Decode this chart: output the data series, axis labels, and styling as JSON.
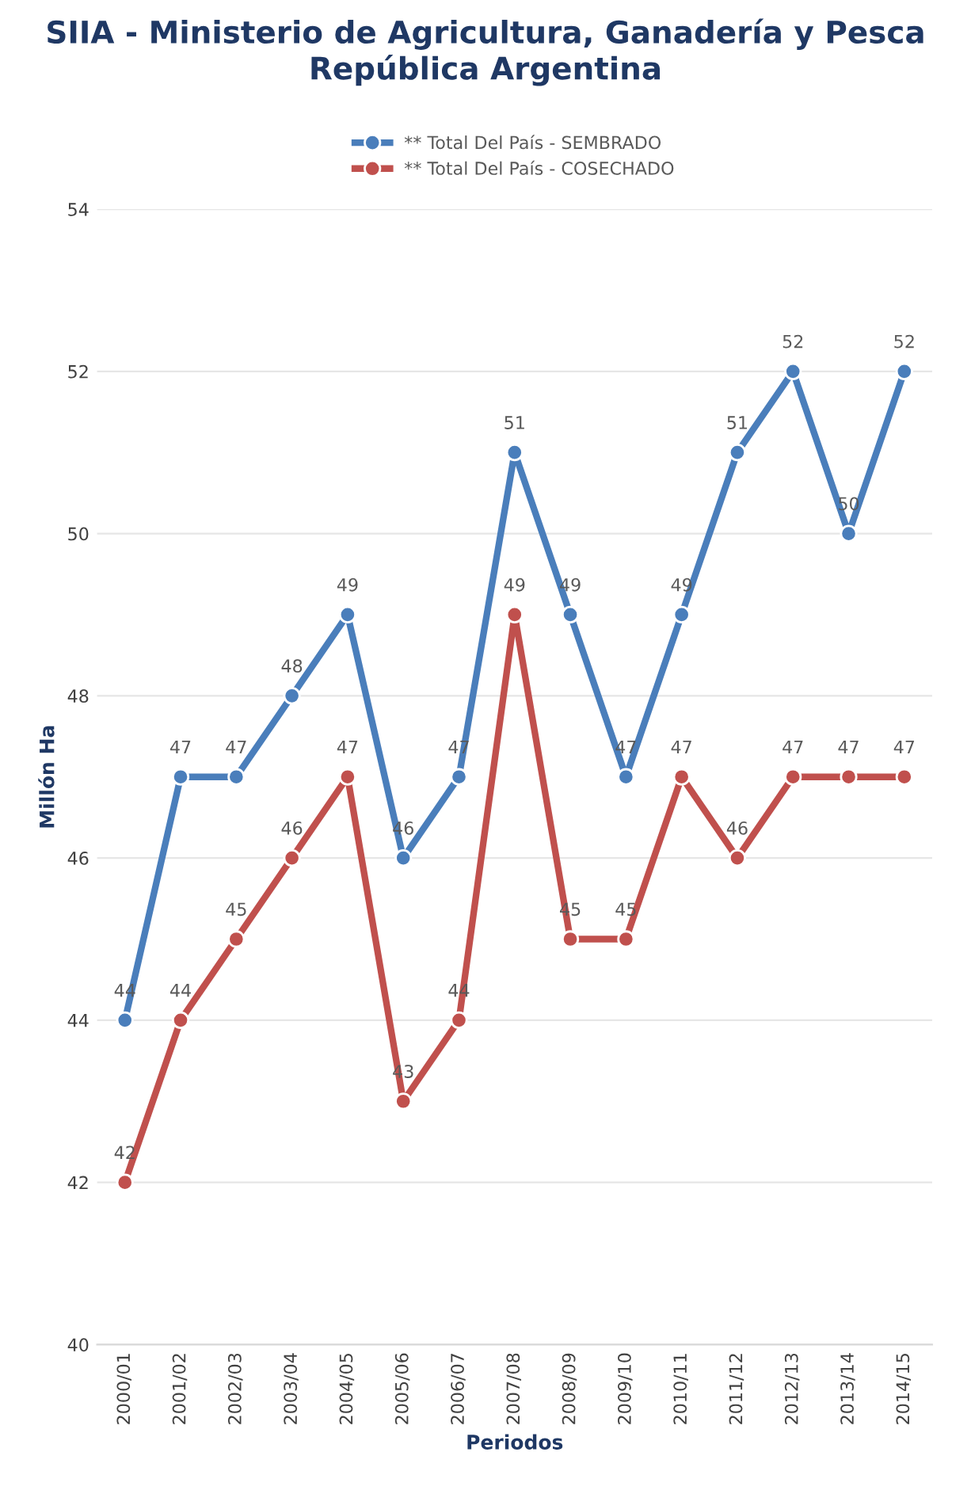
{
  "chart_data": {
    "type": "line",
    "title": "SIIA - Ministerio de Agricultura, Ganadería y Pesca\nRepública Argentina",
    "xlabel": "Periodos",
    "ylabel": "Millón Ha",
    "categories": [
      "2000/01",
      "2001/02",
      "2002/03",
      "2003/04",
      "2004/05",
      "2005/06",
      "2006/07",
      "2007/08",
      "2008/09",
      "2009/10",
      "2010/11",
      "2011/12",
      "2012/13",
      "2013/14",
      "2014/15"
    ],
    "series": [
      {
        "name": "** Total Del País - SEMBRADO",
        "color": "#4a7ebb",
        "values": [
          44,
          47,
          47,
          48,
          49,
          46,
          47,
          51,
          49,
          47,
          49,
          51,
          52,
          50,
          52
        ]
      },
      {
        "name": "** Total Del País - COSECHADO",
        "color": "#c0504d",
        "values": [
          42,
          44,
          45,
          46,
          47,
          43,
          44,
          49,
          45,
          45,
          47,
          46,
          47,
          47,
          47
        ]
      }
    ],
    "ylim": [
      40,
      54
    ],
    "yticks": [
      40,
      42,
      44,
      46,
      48,
      50,
      52,
      54
    ],
    "grid": "y",
    "legend": "top",
    "marker": "circle",
    "data_labels": true
  }
}
